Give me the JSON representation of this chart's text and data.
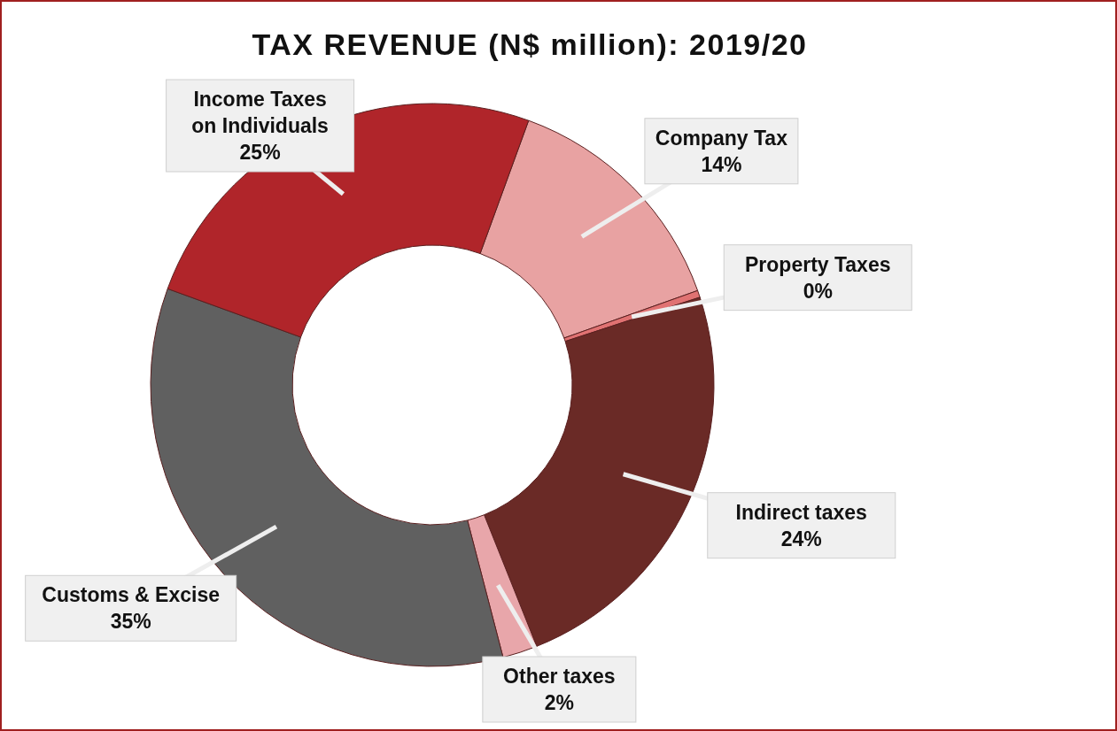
{
  "chart_data": {
    "type": "donut",
    "title": "TAX REVENUE (N$ million): 2019/20",
    "categories": [
      "Company Tax",
      "Property Taxes",
      "Indirect taxes",
      "Other taxes",
      "Customs & Excise",
      "Income Taxes on Individuals"
    ],
    "values": [
      14,
      0.4,
      24,
      2,
      34.6,
      25
    ],
    "value_labels": [
      "14%",
      "0%",
      "24%",
      "2%",
      "35%",
      "25%"
    ],
    "colors": [
      "#e8a2a2",
      "#e07272",
      "#6a2a26",
      "#e8a6aa",
      "#606060",
      "#b0252a"
    ]
  }
}
